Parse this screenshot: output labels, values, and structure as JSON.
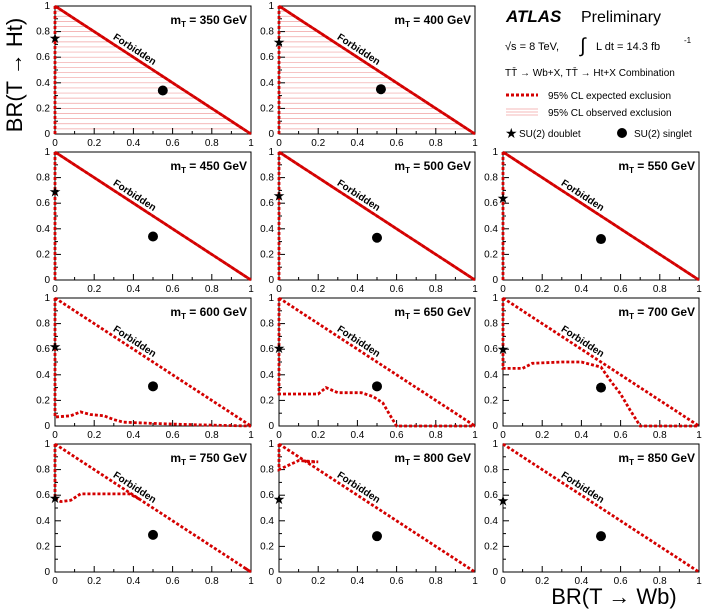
{
  "chart_data": {
    "type": "line",
    "xlabel": "BR(T → Wb)",
    "ylabel": "BR(T → Ht)",
    "xlim": [
      0,
      1
    ],
    "ylim": [
      0,
      1
    ],
    "x_ticks": [
      "0",
      "0.2",
      "0.4",
      "0.6",
      "0.8",
      "1"
    ],
    "y_ticks": [
      "0",
      "0.2",
      "0.4",
      "0.6",
      "0.8",
      "1"
    ],
    "forbidden_label": "Forbidden",
    "colors": {
      "expected": "#d40000",
      "observed": "#f0a0a0",
      "frame": "#000000"
    },
    "legend": {
      "experiment": "ATLAS",
      "status": "Preliminary",
      "energy": "√s = 8 TeV,",
      "lumi_integral": "∫",
      "lumi": "L dt = 14.3 fb",
      "lumi_exp": "-1",
      "channels": "TT̄ → Wb+X, TT̄ → Ht+X Combination",
      "expected": "95% CL expected exclusion",
      "observed": "95% CL observed exclusion",
      "doublet": "SU(2) doublet",
      "singlet": "SU(2) singlet"
    },
    "panels": [
      {
        "mass_label": "m",
        "mass_sub": "T",
        "mass_value": "= 350 GeV",
        "doublet": [
          0,
          0.75
        ],
        "singlet": [
          0.55,
          0.34
        ],
        "observed_full": true,
        "expected": [
          [
            0,
            0
          ],
          [
            0,
            1
          ],
          [
            1,
            0
          ]
        ]
      },
      {
        "mass_label": "m",
        "mass_sub": "T",
        "mass_value": "= 400 GeV",
        "doublet": [
          0,
          0.72
        ],
        "singlet": [
          0.52,
          0.35
        ],
        "observed_full": true,
        "expected": [
          [
            0,
            0
          ],
          [
            0,
            1
          ],
          [
            1,
            0
          ]
        ]
      },
      {
        "mass_label": "m",
        "mass_sub": "T",
        "mass_value": "= 450 GeV",
        "doublet": [
          0,
          0.69
        ],
        "singlet": [
          0.5,
          0.34
        ],
        "observed_full": false,
        "expected": [
          [
            0,
            0
          ],
          [
            0,
            1
          ],
          [
            1,
            0
          ]
        ]
      },
      {
        "mass_label": "m",
        "mass_sub": "T",
        "mass_value": "= 500 GeV",
        "doublet": [
          0,
          0.66
        ],
        "singlet": [
          0.5,
          0.33
        ],
        "observed_full": false,
        "expected": [
          [
            0,
            0
          ],
          [
            0,
            1
          ],
          [
            1,
            0
          ]
        ]
      },
      {
        "mass_label": "m",
        "mass_sub": "T",
        "mass_value": "= 550 GeV",
        "doublet": [
          0,
          0.64
        ],
        "singlet": [
          0.5,
          0.32
        ],
        "observed_full": false,
        "expected": [
          [
            0,
            0
          ],
          [
            0,
            1
          ],
          [
            1,
            0
          ]
        ]
      },
      {
        "mass_label": "m",
        "mass_sub": "T",
        "mass_value": "= 600 GeV",
        "doublet": [
          0,
          0.62
        ],
        "singlet": [
          0.5,
          0.31
        ],
        "observed_full": false,
        "expected": [
          [
            0,
            1
          ],
          [
            0,
            0.07
          ],
          [
            0.08,
            0.08
          ],
          [
            0.13,
            0.11
          ],
          [
            0.18,
            0.09
          ],
          [
            0.25,
            0.08
          ],
          [
            0.3,
            0.05
          ],
          [
            0.35,
            0.03
          ],
          [
            0.5,
            0.02
          ],
          [
            0.7,
            0.01
          ],
          [
            1,
            0
          ]
        ]
      },
      {
        "mass_label": "m",
        "mass_sub": "T",
        "mass_value": "= 650 GeV",
        "doublet": [
          0,
          0.61
        ],
        "singlet": [
          0.5,
          0.31
        ],
        "observed_full": false,
        "expected": [
          [
            0,
            1
          ],
          [
            0,
            0.25
          ],
          [
            0.2,
            0.25
          ],
          [
            0.24,
            0.3
          ],
          [
            0.3,
            0.26
          ],
          [
            0.42,
            0.26
          ],
          [
            0.48,
            0.23
          ],
          [
            0.53,
            0.18
          ],
          [
            0.56,
            0.1
          ],
          [
            0.6,
            0
          ],
          [
            1,
            0
          ]
        ]
      },
      {
        "mass_label": "m",
        "mass_sub": "T",
        "mass_value": "= 700 GeV",
        "doublet": [
          0,
          0.6
        ],
        "singlet": [
          0.5,
          0.3
        ],
        "observed_full": false,
        "expected": [
          [
            0,
            1
          ],
          [
            0,
            0.45
          ],
          [
            0.1,
            0.45
          ],
          [
            0.15,
            0.49
          ],
          [
            0.3,
            0.5
          ],
          [
            0.4,
            0.5
          ],
          [
            0.5,
            0.46
          ],
          [
            0.55,
            0.35
          ],
          [
            0.6,
            0.25
          ],
          [
            0.65,
            0.12
          ],
          [
            0.7,
            0
          ],
          [
            1,
            0
          ]
        ]
      },
      {
        "mass_label": "m",
        "mass_sub": "T",
        "mass_value": "= 750 GeV",
        "doublet": [
          0,
          0.58
        ],
        "singlet": [
          0.5,
          0.29
        ],
        "observed_full": false,
        "expected": [
          [
            0,
            1
          ],
          [
            0,
            0.57
          ],
          [
            0.03,
            0.55
          ],
          [
            0.08,
            0.56
          ],
          [
            0.13,
            0.61
          ],
          [
            0.22,
            0.61
          ],
          [
            0.38,
            0.61
          ],
          [
            0.43,
            0.57
          ]
        ],
        "expected_extra": [
          [
            0.97,
            0.03
          ],
          [
            1,
            0
          ]
        ]
      },
      {
        "mass_label": "m",
        "mass_sub": "T",
        "mass_value": "= 800 GeV",
        "doublet": [
          0,
          0.57
        ],
        "singlet": [
          0.5,
          0.28
        ],
        "observed_full": false,
        "expected": [
          [
            0,
            1
          ],
          [
            0,
            0.8
          ],
          [
            0.1,
            0.87
          ],
          [
            0.2,
            0.86
          ],
          [
            0.14,
            0.86
          ]
        ]
      },
      {
        "mass_label": "m",
        "mass_sub": "T",
        "mass_value": "= 850 GeV",
        "doublet": [
          0,
          0.56
        ],
        "singlet": [
          0.5,
          0.28
        ],
        "observed_full": false,
        "expected": []
      }
    ]
  }
}
